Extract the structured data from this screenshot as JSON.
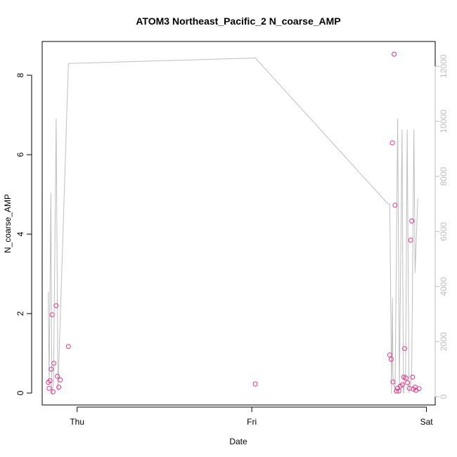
{
  "chart_data": {
    "type": "scatter",
    "title": "ATOM3 Northeast_Pacific_2 N_coarse_AMP",
    "xlabel": "Date",
    "ylabel": "N_coarse_AMP",
    "x_ticks": [
      "Thu",
      "Fri",
      "Sat"
    ],
    "x_tick_values": [
      0,
      1,
      2
    ],
    "xlim": [
      -0.2,
      2.05
    ],
    "ylim": [
      -0.3,
      8.85
    ],
    "y_ticks": [
      0,
      2,
      4,
      6,
      8
    ],
    "y2lim": [
      -300,
      12900
    ],
    "y2_ticks": [
      0,
      2000,
      4000,
      6000,
      8000,
      10000,
      12000
    ],
    "grid": false,
    "colors": {
      "points": "#e8338c",
      "line": "#bebebe",
      "axis": "#000000",
      "right_axis": "#bebebe"
    },
    "series": [
      {
        "kind": "points",
        "axis": "left",
        "points": [
          [
            -0.165,
            0.27
          ],
          [
            -0.16,
            0.12
          ],
          [
            -0.155,
            0.31
          ],
          [
            -0.148,
            0.6
          ],
          [
            -0.143,
            1.97
          ],
          [
            -0.138,
            0.03
          ],
          [
            -0.133,
            0.75
          ],
          [
            -0.12,
            2.2
          ],
          [
            -0.113,
            0.42
          ],
          [
            -0.105,
            0.15
          ],
          [
            -0.096,
            0.33
          ],
          [
            -0.05,
            1.17
          ],
          [
            1.02,
            0.23
          ],
          [
            1.79,
            0.96
          ],
          [
            1.798,
            0.85
          ],
          [
            1.805,
            6.3
          ],
          [
            1.808,
            0.28
          ],
          [
            1.815,
            8.53
          ],
          [
            1.82,
            4.73
          ],
          [
            1.828,
            0.05
          ],
          [
            1.835,
            0.12
          ],
          [
            1.842,
            0.05
          ],
          [
            1.85,
            0.17
          ],
          [
            1.862,
            0.21
          ],
          [
            1.87,
            0.4
          ],
          [
            1.875,
            1.12
          ],
          [
            1.882,
            0.38
          ],
          [
            1.892,
            0.26
          ],
          [
            1.902,
            0.12
          ],
          [
            1.91,
            3.85
          ],
          [
            1.916,
            4.33
          ],
          [
            1.92,
            0.4
          ],
          [
            1.925,
            0.1
          ],
          [
            1.935,
            0.15
          ],
          [
            1.94,
            0.07
          ],
          [
            1.958,
            0.11
          ]
        ]
      },
      {
        "kind": "line",
        "axis": "right",
        "points": [
          [
            -0.165,
            3800
          ],
          [
            -0.16,
            600
          ],
          [
            -0.15,
            7400
          ],
          [
            -0.145,
            100
          ],
          [
            -0.135,
            500
          ],
          [
            -0.12,
            10100
          ],
          [
            -0.11,
            200
          ],
          [
            -0.05,
            12100
          ],
          [
            1.02,
            12300
          ],
          [
            1.78,
            7000
          ],
          [
            1.79,
            7000
          ],
          [
            1.795,
            3800
          ],
          [
            1.8,
            100
          ],
          [
            1.805,
            3600
          ],
          [
            1.808,
            800
          ],
          [
            1.82,
            100
          ],
          [
            1.835,
            10100
          ],
          [
            1.845,
            300
          ],
          [
            1.86,
            9700
          ],
          [
            1.868,
            100
          ],
          [
            1.88,
            800
          ],
          [
            1.89,
            9700
          ],
          [
            1.9,
            150
          ],
          [
            1.915,
            700
          ],
          [
            1.928,
            9700
          ],
          [
            1.935,
            4500
          ],
          [
            1.95,
            7200
          ]
        ]
      }
    ]
  }
}
